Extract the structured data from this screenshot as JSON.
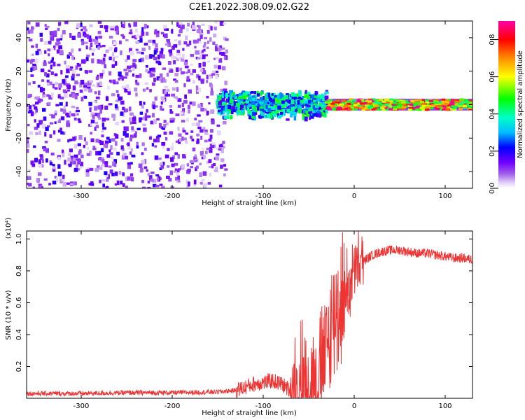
{
  "page_title": "C2E1.2022.308.09.02.G22",
  "colorbar": {
    "label": "Normalized spectral amplitude",
    "ticks": [
      "0.0",
      "0.2",
      "0.4",
      "0.6",
      "0.8"
    ],
    "range": [
      0,
      0.9
    ],
    "colors": [
      "#ffffff",
      "#e0cff7",
      "#8a2be2",
      "#5b00ff",
      "#0000ff",
      "#00bfff",
      "#00ffcc",
      "#00ff00",
      "#ffff00",
      "#ff8800",
      "#ff0000",
      "#ff00aa"
    ]
  },
  "chart_data": [
    {
      "type": "heatmap",
      "title": "",
      "xlabel": "Height of straight line (km)",
      "ylabel": "Frequency (Hz)",
      "xlim": [
        -360,
        130
      ],
      "ylim": [
        -50,
        50
      ],
      "xticks": [
        -300,
        -200,
        -100,
        0,
        100
      ],
      "yticks": [
        -40,
        -20,
        0,
        20,
        40
      ],
      "xtick_labels": [
        "-300",
        "-200",
        "-100",
        "0",
        "100"
      ],
      "ytick_labels": [
        "-40",
        "-20",
        "0",
        "20",
        "40"
      ],
      "grid": false,
      "colorscale": "rainbow",
      "zlim": [
        0,
        0.9
      ],
      "zlabel": "Normalized spectral amplitude",
      "regions": [
        {
          "x": [
            -360,
            -140
          ],
          "y": [
            -50,
            50
          ],
          "amplitude": [
            0.02,
            0.15
          ],
          "description": "diffuse noise"
        },
        {
          "x": [
            -150,
            -30
          ],
          "y": [
            -10,
            8
          ],
          "amplitude": [
            0.15,
            0.5
          ],
          "description": "broadened signal"
        },
        {
          "x": [
            -30,
            130
          ],
          "y": [
            -2,
            2
          ],
          "amplitude": [
            0.4,
            0.9
          ],
          "description": "narrow carrier line at 0 Hz"
        }
      ]
    },
    {
      "type": "line",
      "title": "",
      "xlabel": "Height of straight line (km)",
      "ylabel": "SNR (10 * v/v)",
      "y_multiplier": "(x10⁴)",
      "xlim": [
        -360,
        130
      ],
      "ylim": [
        0,
        1.05
      ],
      "xticks": [
        -300,
        -200,
        -100,
        0,
        100
      ],
      "yticks": [
        0.2,
        0.4,
        0.6,
        0.8,
        1.0
      ],
      "xtick_labels": [
        "-300",
        "-200",
        "-100",
        "0",
        "100"
      ],
      "ytick_labels": [
        "0.2",
        "0.4",
        "0.6",
        "0.8",
        "1.0"
      ],
      "grid": false,
      "series": [
        {
          "color": "#ee3333",
          "x": [
            -360,
            -300,
            -250,
            -200,
            -150,
            -130,
            -120,
            -110,
            -100,
            -90,
            -80,
            -70,
            -60,
            -50,
            -40,
            -35,
            -30,
            -25,
            -20,
            -15,
            -10,
            -5,
            0,
            5,
            10,
            20,
            30,
            40,
            50,
            60,
            70,
            80,
            90,
            100,
            110,
            120,
            130
          ],
          "y": [
            0.03,
            0.03,
            0.035,
            0.035,
            0.04,
            0.05,
            0.07,
            0.09,
            0.1,
            0.11,
            0.09,
            0.05,
            0.06,
            0.09,
            0.12,
            0.2,
            0.3,
            0.45,
            0.55,
            0.6,
            0.65,
            0.72,
            0.78,
            0.82,
            0.86,
            0.9,
            0.92,
            0.93,
            0.93,
            0.92,
            0.91,
            0.91,
            0.9,
            0.89,
            0.88,
            0.88,
            0.87
          ]
        }
      ]
    }
  ]
}
